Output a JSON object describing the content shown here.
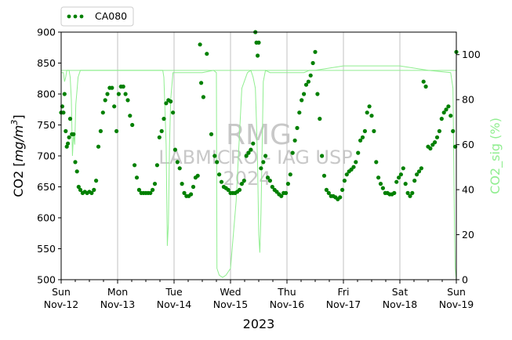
{
  "chart_data": {
    "type": "line",
    "title": "",
    "xlabel": "2023",
    "ylabel_left": "CO2 [mg/m³]",
    "ylabel_left_parts": {
      "prefix": "CO2 [",
      "unit": "mg/m",
      "sup": "3",
      "suffix": "]"
    },
    "ylabel_right": "CO2_sig (%)",
    "xlim": [
      "2023-11-12 00:00",
      "2023-11-19 00:00"
    ],
    "ylim_left": [
      500,
      900
    ],
    "ylim_right": [
      0,
      110
    ],
    "x_ticks": [
      {
        "day": "Sun",
        "date": "Nov-12"
      },
      {
        "day": "Mon",
        "date": "Nov-13"
      },
      {
        "day": "Tue",
        "date": "Nov-14"
      },
      {
        "day": "Wed",
        "date": "Nov-15"
      },
      {
        "day": "Thu",
        "date": "Nov-16"
      },
      {
        "day": "Fri",
        "date": "Nov-17"
      },
      {
        "day": "Sat",
        "date": "Nov-18"
      },
      {
        "day": "Sun",
        "date": "Nov-19"
      }
    ],
    "y_ticks_left": [
      500,
      550,
      600,
      650,
      700,
      750,
      800,
      850,
      900
    ],
    "y_ticks_right": [
      0,
      20,
      40,
      60,
      80,
      100
    ],
    "grid": "vertical at day boundaries",
    "legend": {
      "placement": "top-left, above axes",
      "entries": [
        "CA080"
      ]
    },
    "series": [
      {
        "name": "CA080",
        "axis": "left",
        "style": "dotted markers",
        "color": "#008000",
        "points": [
          [
            0.0,
            770
          ],
          [
            0.02,
            780
          ],
          [
            0.04,
            770
          ],
          [
            0.06,
            800
          ],
          [
            0.08,
            740
          ],
          [
            0.1,
            715
          ],
          [
            0.12,
            720
          ],
          [
            0.14,
            730
          ],
          [
            0.16,
            760
          ],
          [
            0.19,
            735
          ],
          [
            0.22,
            735
          ],
          [
            0.25,
            690
          ],
          [
            0.28,
            675
          ],
          [
            0.31,
            650
          ],
          [
            0.34,
            645
          ],
          [
            0.38,
            640
          ],
          [
            0.42,
            642
          ],
          [
            0.46,
            640
          ],
          [
            0.5,
            642
          ],
          [
            0.54,
            640
          ],
          [
            0.58,
            645
          ],
          [
            0.62,
            660
          ],
          [
            0.66,
            715
          ],
          [
            0.7,
            740
          ],
          [
            0.74,
            770
          ],
          [
            0.78,
            790
          ],
          [
            0.82,
            800
          ],
          [
            0.86,
            810
          ],
          [
            0.9,
            810
          ],
          [
            0.94,
            780
          ],
          [
            0.98,
            740
          ],
          [
            1.02,
            800
          ],
          [
            1.06,
            812
          ],
          [
            1.1,
            812
          ],
          [
            1.14,
            800
          ],
          [
            1.18,
            790
          ],
          [
            1.22,
            765
          ],
          [
            1.26,
            750
          ],
          [
            1.3,
            685
          ],
          [
            1.34,
            665
          ],
          [
            1.38,
            645
          ],
          [
            1.42,
            640
          ],
          [
            1.46,
            640
          ],
          [
            1.5,
            640
          ],
          [
            1.54,
            640
          ],
          [
            1.58,
            640
          ],
          [
            1.62,
            645
          ],
          [
            1.66,
            655
          ],
          [
            1.7,
            685
          ],
          [
            1.74,
            730
          ],
          [
            1.78,
            740
          ],
          [
            1.82,
            760
          ],
          [
            1.86,
            785
          ],
          [
            1.9,
            790
          ],
          [
            1.94,
            788
          ],
          [
            1.98,
            770
          ],
          [
            2.02,
            710
          ],
          [
            2.06,
            690
          ],
          [
            2.1,
            680
          ],
          [
            2.14,
            655
          ],
          [
            2.18,
            640
          ],
          [
            2.22,
            635
          ],
          [
            2.26,
            635
          ],
          [
            2.3,
            638
          ],
          [
            2.34,
            650
          ],
          [
            2.38,
            665
          ],
          [
            2.42,
            668
          ],
          [
            2.46,
            880
          ],
          [
            2.48,
            818
          ],
          [
            2.52,
            795
          ],
          [
            2.58,
            865
          ],
          [
            2.66,
            735
          ],
          [
            2.72,
            700
          ],
          [
            2.76,
            690
          ],
          [
            2.8,
            670
          ],
          [
            2.84,
            658
          ],
          [
            2.88,
            650
          ],
          [
            2.92,
            648
          ],
          [
            2.96,
            645
          ],
          [
            3.0,
            640
          ],
          [
            3.04,
            640
          ],
          [
            3.08,
            640
          ],
          [
            3.12,
            642
          ],
          [
            3.16,
            645
          ],
          [
            3.2,
            655
          ],
          [
            3.24,
            660
          ],
          [
            3.28,
            700
          ],
          [
            3.32,
            705
          ],
          [
            3.36,
            710
          ],
          [
            3.4,
            720
          ],
          [
            3.44,
            900
          ],
          [
            3.46,
            883
          ],
          [
            3.48,
            862
          ],
          [
            3.5,
            883
          ],
          [
            3.54,
            680
          ],
          [
            3.58,
            690
          ],
          [
            3.62,
            700
          ],
          [
            3.66,
            665
          ],
          [
            3.7,
            660
          ],
          [
            3.74,
            650
          ],
          [
            3.78,
            645
          ],
          [
            3.82,
            642
          ],
          [
            3.86,
            638
          ],
          [
            3.9,
            635
          ],
          [
            3.94,
            640
          ],
          [
            3.98,
            640
          ],
          [
            4.02,
            655
          ],
          [
            4.06,
            670
          ],
          [
            4.1,
            705
          ],
          [
            4.14,
            725
          ],
          [
            4.18,
            745
          ],
          [
            4.22,
            770
          ],
          [
            4.26,
            790
          ],
          [
            4.3,
            800
          ],
          [
            4.34,
            815
          ],
          [
            4.38,
            820
          ],
          [
            4.42,
            830
          ],
          [
            4.46,
            850
          ],
          [
            4.5,
            868
          ],
          [
            4.54,
            800
          ],
          [
            4.58,
            760
          ],
          [
            4.62,
            700
          ],
          [
            4.66,
            668
          ],
          [
            4.7,
            645
          ],
          [
            4.74,
            640
          ],
          [
            4.78,
            635
          ],
          [
            4.82,
            635
          ],
          [
            4.86,
            633
          ],
          [
            4.9,
            630
          ],
          [
            4.94,
            633
          ],
          [
            4.98,
            645
          ],
          [
            5.02,
            660
          ],
          [
            5.06,
            670
          ],
          [
            5.1,
            675
          ],
          [
            5.14,
            678
          ],
          [
            5.18,
            682
          ],
          [
            5.22,
            690
          ],
          [
            5.26,
            705
          ],
          [
            5.3,
            725
          ],
          [
            5.34,
            730
          ],
          [
            5.38,
            740
          ],
          [
            5.42,
            770
          ],
          [
            5.46,
            780
          ],
          [
            5.5,
            765
          ],
          [
            5.54,
            740
          ],
          [
            5.58,
            690
          ],
          [
            5.62,
            665
          ],
          [
            5.66,
            655
          ],
          [
            5.7,
            648
          ],
          [
            5.74,
            640
          ],
          [
            5.78,
            640
          ],
          [
            5.82,
            638
          ],
          [
            5.86,
            638
          ],
          [
            5.9,
            640
          ],
          [
            5.94,
            658
          ],
          [
            5.98,
            665
          ],
          [
            6.02,
            670
          ],
          [
            6.06,
            680
          ],
          [
            6.1,
            655
          ],
          [
            6.14,
            640
          ],
          [
            6.18,
            635
          ],
          [
            6.22,
            640
          ],
          [
            6.26,
            660
          ],
          [
            6.3,
            670
          ],
          [
            6.34,
            675
          ],
          [
            6.38,
            680
          ],
          [
            6.42,
            820
          ],
          [
            6.46,
            812
          ],
          [
            6.5,
            715
          ],
          [
            6.54,
            712
          ],
          [
            6.58,
            718
          ],
          [
            6.62,
            722
          ],
          [
            6.66,
            730
          ],
          [
            6.7,
            740
          ],
          [
            6.74,
            760
          ],
          [
            6.78,
            770
          ],
          [
            6.82,
            775
          ],
          [
            6.86,
            780
          ],
          [
            6.9,
            765
          ],
          [
            6.94,
            740
          ],
          [
            6.98,
            715
          ],
          [
            7.0,
            868
          ]
        ]
      },
      {
        "name": "CO2_sig",
        "axis": "right",
        "style": "line",
        "color": "#90ee90",
        "points": [
          [
            0.0,
            92
          ],
          [
            0.04,
            92
          ],
          [
            0.06,
            88
          ],
          [
            0.08,
            90
          ],
          [
            0.1,
            93
          ],
          [
            0.14,
            93
          ],
          [
            0.16,
            90
          ],
          [
            0.18,
            80
          ],
          [
            0.2,
            55
          ],
          [
            0.22,
            65
          ],
          [
            0.24,
            60
          ],
          [
            0.26,
            78
          ],
          [
            0.28,
            84
          ],
          [
            0.3,
            90
          ],
          [
            0.34,
            93
          ],
          [
            0.6,
            93
          ],
          [
            1.0,
            93
          ],
          [
            1.4,
            93
          ],
          [
            1.8,
            93
          ],
          [
            1.82,
            90
          ],
          [
            1.86,
            60
          ],
          [
            1.88,
            15
          ],
          [
            1.9,
            25
          ],
          [
            1.92,
            60
          ],
          [
            1.94,
            80
          ],
          [
            1.98,
            92
          ],
          [
            2.5,
            92
          ],
          [
            2.7,
            93
          ],
          [
            2.75,
            92
          ],
          [
            2.76,
            5
          ],
          [
            2.8,
            2
          ],
          [
            2.86,
            1
          ],
          [
            2.92,
            2
          ],
          [
            3.0,
            5
          ],
          [
            3.1,
            35
          ],
          [
            3.2,
            85
          ],
          [
            3.3,
            92
          ],
          [
            3.36,
            93
          ],
          [
            3.4,
            90
          ],
          [
            3.44,
            85
          ],
          [
            3.46,
            70
          ],
          [
            3.48,
            50
          ],
          [
            3.5,
            20
          ],
          [
            3.52,
            12
          ],
          [
            3.54,
            30
          ],
          [
            3.58,
            88
          ],
          [
            3.62,
            93
          ],
          [
            3.7,
            92
          ],
          [
            4.0,
            92
          ],
          [
            4.2,
            92
          ],
          [
            4.3,
            92
          ],
          [
            4.4,
            93
          ],
          [
            4.5,
            93
          ],
          [
            5.0,
            95
          ],
          [
            5.5,
            95
          ],
          [
            6.0,
            95
          ],
          [
            6.5,
            93
          ],
          [
            6.9,
            92
          ],
          [
            6.94,
            85
          ],
          [
            6.96,
            40
          ],
          [
            6.97,
            20
          ],
          [
            6.98,
            5
          ],
          [
            7.0,
            0
          ]
        ]
      }
    ],
    "watermark": {
      "line1": "RMG",
      "line2": "LABMICRO - IAG USP",
      "line3": "2024"
    },
    "reference_line": {
      "axis": "right",
      "value": 93
    }
  }
}
